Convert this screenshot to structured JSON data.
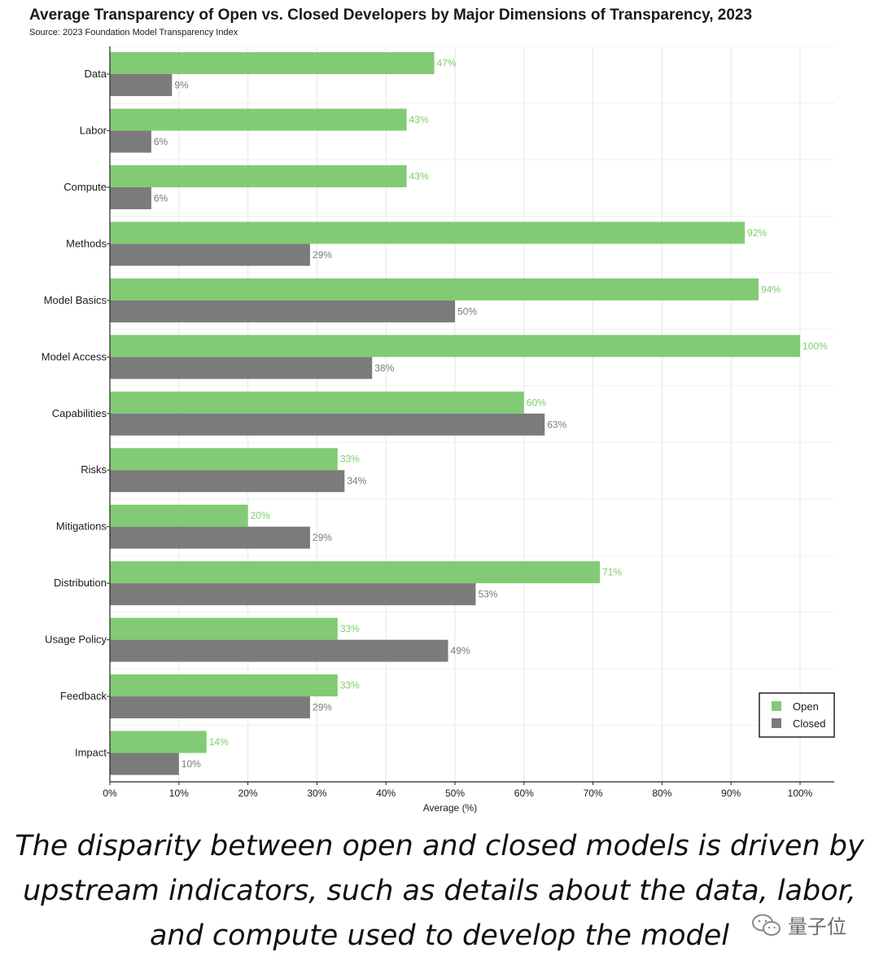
{
  "title": "Average Transparency of Open vs. Closed Developers by Major Dimensions of Transparency, 2023",
  "subtitle": "Source: 2023 Foundation Model Transparency Index",
  "chart_data": {
    "type": "bar",
    "orientation": "horizontal",
    "categories": [
      "Data",
      "Labor",
      "Compute",
      "Methods",
      "Model Basics",
      "Model Access",
      "Capabilities",
      "Risks",
      "Mitigations",
      "Distribution",
      "Usage Policy",
      "Feedback",
      "Impact"
    ],
    "series": [
      {
        "name": "Open",
        "color": "#82cb74",
        "label_color": "#7fcb6c",
        "values": [
          47,
          43,
          43,
          92,
          94,
          100,
          60,
          33,
          20,
          71,
          33,
          33,
          14
        ]
      },
      {
        "name": "Closed",
        "color": "#7b7b7b",
        "label_color": "#7b7b7b",
        "values": [
          9,
          6,
          6,
          29,
          50,
          38,
          63,
          34,
          29,
          53,
          49,
          29,
          10
        ]
      }
    ],
    "xlabel": "Average (%)",
    "ylabel": "",
    "xlim": [
      0,
      105
    ],
    "xticks": [
      0,
      10,
      20,
      30,
      40,
      50,
      60,
      70,
      80,
      90,
      100
    ],
    "tick_suffix": "%",
    "grid": true,
    "legend": {
      "placement": "bottom-right",
      "entries": [
        "Open",
        "Closed"
      ]
    }
  },
  "caption": {
    "lines": [
      "The disparity between open and closed models is driven by",
      "upstream indicators, such as details about the data, labor,",
      "and compute used to develop the model"
    ]
  },
  "watermark": {
    "text": "量子位",
    "icon": "wechat-icon"
  }
}
